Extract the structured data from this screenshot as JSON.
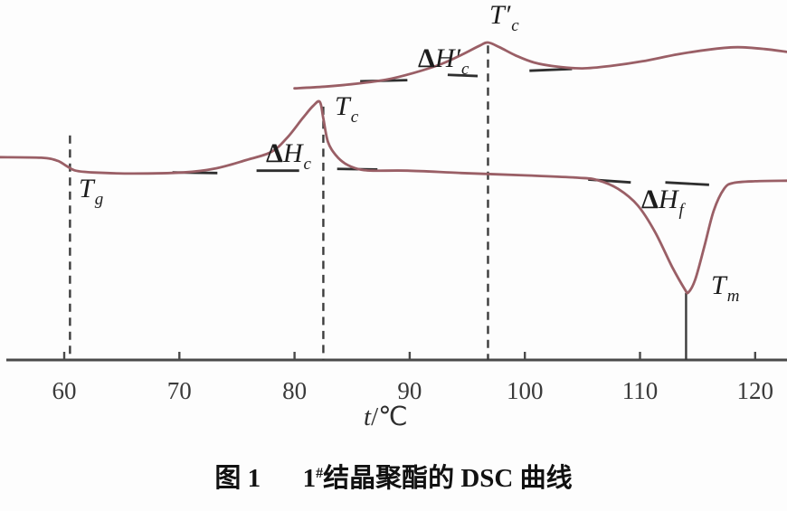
{
  "caption": {
    "figure_label": "图 1",
    "sample_number": "1",
    "sample_superscript": "#",
    "text": "结晶聚酯的 DSC 曲线"
  },
  "colors": {
    "curve": "#9a5f66",
    "axis": "#4a4a4a",
    "marker_line": "#3c3c3c",
    "baseline_segment": "#2e2e2e",
    "tick_label": "#3a3a3a",
    "text": "#1c1c1c",
    "background": "#fdfdfd"
  },
  "chart_data": {
    "type": "line",
    "title": "图1 1#结晶聚酯的DSC曲线 (DSC curves of crystalline polyester No.1)",
    "xlabel": "t/℃",
    "xlabel_parts": {
      "variable": "t",
      "separator": "/",
      "unit": "℃"
    },
    "ylabel": "",
    "y_units": "heat flow, arbitrary units (axis not labeled)",
    "x_ticks": [
      60,
      70,
      80,
      90,
      100,
      110,
      120
    ],
    "x_range_visible": [
      55,
      123
    ],
    "ylim_au": [
      -3.2,
      2.8
    ],
    "grid": false,
    "legend": "none",
    "temperatures_est_C": {
      "Tg": 60.5,
      "Tc": 82.5,
      "Tc_prime": 96.8,
      "Tm": 114.0
    },
    "series": [
      {
        "name": "lower DSC curve (glass transition, cold-crystallization exotherm Tc, melting endotherm Tm)",
        "points_t_au": [
          [
            54.4,
            0.25
          ],
          [
            58.0,
            0.24
          ],
          [
            59.4,
            0.19
          ],
          [
            60.2,
            0.1
          ],
          [
            61.0,
            0.02
          ],
          [
            62.5,
            -0.01
          ],
          [
            66.0,
            -0.03
          ],
          [
            70.3,
            -0.01
          ],
          [
            73.2,
            0.06
          ],
          [
            75.8,
            0.2
          ],
          [
            78.0,
            0.34
          ],
          [
            79.4,
            0.59
          ],
          [
            80.7,
            0.91
          ],
          [
            81.6,
            1.12
          ],
          [
            82.2,
            1.19
          ],
          [
            82.5,
            0.91
          ],
          [
            82.9,
            0.51
          ],
          [
            83.6,
            0.28
          ],
          [
            84.4,
            0.14
          ],
          [
            85.5,
            0.05
          ],
          [
            86.8,
            0.02
          ],
          [
            89.8,
            0.02
          ],
          [
            94.5,
            -0.02
          ],
          [
            100.0,
            -0.06
          ],
          [
            104.6,
            -0.1
          ],
          [
            106.3,
            -0.14
          ],
          [
            108.1,
            -0.29
          ],
          [
            109.8,
            -0.57
          ],
          [
            111.3,
            -1.02
          ],
          [
            112.8,
            -1.62
          ],
          [
            113.9,
            -2.0
          ],
          [
            114.2,
            -2.05
          ],
          [
            114.8,
            -1.83
          ],
          [
            115.6,
            -1.26
          ],
          [
            116.4,
            -0.66
          ],
          [
            117.3,
            -0.29
          ],
          [
            118.1,
            -0.19
          ],
          [
            120.0,
            -0.16
          ],
          [
            122.8,
            -0.15
          ]
        ]
      },
      {
        "name": "upper DSC curve (crystallization exotherm T'c)",
        "points_t_au": [
          [
            80.0,
            1.42
          ],
          [
            82.6,
            1.45
          ],
          [
            85.4,
            1.5
          ],
          [
            88.0,
            1.57
          ],
          [
            90.3,
            1.68
          ],
          [
            92.7,
            1.83
          ],
          [
            94.6,
            2.0
          ],
          [
            96.1,
            2.15
          ],
          [
            96.8,
            2.2
          ],
          [
            97.8,
            2.12
          ],
          [
            99.2,
            1.98
          ],
          [
            100.8,
            1.86
          ],
          [
            102.8,
            1.79
          ],
          [
            105.0,
            1.76
          ],
          [
            107.4,
            1.8
          ],
          [
            110.2,
            1.88
          ],
          [
            113.3,
            2.0
          ],
          [
            116.4,
            2.09
          ],
          [
            118.5,
            2.12
          ],
          [
            120.8,
            2.09
          ],
          [
            122.8,
            2.04
          ]
        ]
      }
    ],
    "markers": [
      {
        "label": "Tg",
        "t": 60.5,
        "top_au": 0.62,
        "style": "dashed"
      },
      {
        "label": "Tc",
        "t": 82.5,
        "top_au": 1.11,
        "style": "dashed"
      },
      {
        "label": "T'c",
        "t": 96.8,
        "top_au": 2.15,
        "style": "dashed"
      },
      {
        "label": "Tm",
        "t": 114.0,
        "top_au": -2.06,
        "style": "solid"
      }
    ],
    "baseline_segments": [
      [
        69.4,
        -0.01,
        73.3,
        -0.02
      ],
      [
        76.7,
        0.02,
        80.4,
        0.02
      ],
      [
        83.7,
        0.05,
        87.2,
        0.04
      ],
      [
        85.7,
        1.54,
        89.8,
        1.56
      ],
      [
        93.3,
        1.65,
        95.9,
        1.63
      ],
      [
        100.4,
        1.72,
        104.1,
        1.75
      ],
      [
        105.5,
        -0.13,
        109.2,
        -0.18
      ],
      [
        112.2,
        -0.18,
        116.0,
        -0.22
      ]
    ],
    "annotations": [
      {
        "name": "Tg",
        "pre": "",
        "main": "T",
        "prime": "",
        "sub": "g"
      },
      {
        "name": "dHc",
        "pre": "Δ",
        "main": "H",
        "prime": "",
        "sub": "c"
      },
      {
        "name": "Tc",
        "pre": "",
        "main": "T",
        "prime": "",
        "sub": "c"
      },
      {
        "name": "dHc_prime",
        "pre": "Δ",
        "main": "H",
        "prime": "′",
        "sub": "c"
      },
      {
        "name": "Tc_prime",
        "pre": "",
        "main": "T",
        "prime": "′",
        "sub": "c"
      },
      {
        "name": "dHf",
        "pre": "Δ",
        "main": "H",
        "prime": "",
        "sub": "f"
      },
      {
        "name": "Tm",
        "pre": "",
        "main": "T",
        "prime": "",
        "sub": "m"
      }
    ]
  }
}
